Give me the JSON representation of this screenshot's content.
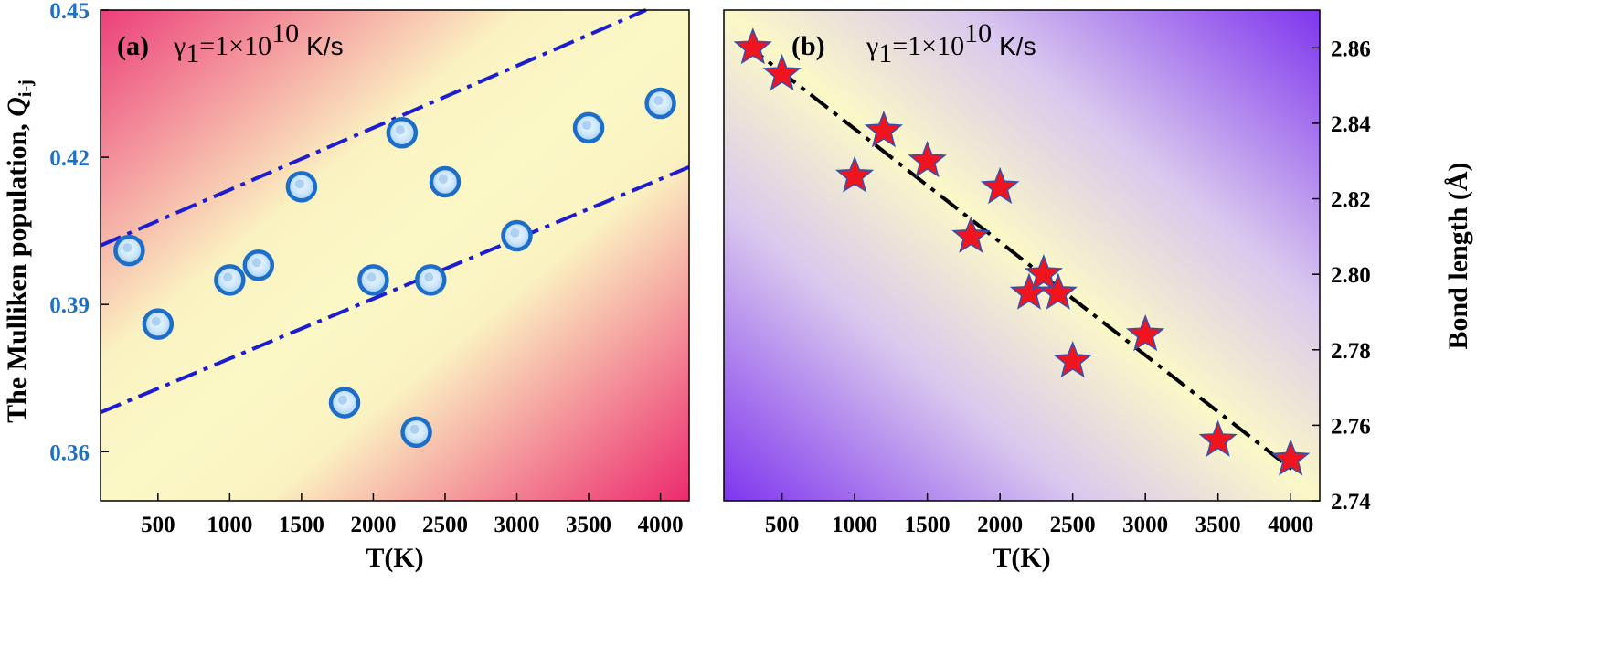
{
  "chart_data": [
    {
      "type": "scatter",
      "panel_label": "(a)",
      "annotation": {
        "symbol": "γ",
        "sub": "1",
        "main": "=1×10",
        "sup": "10",
        "unit": "K/s"
      },
      "xlabel": "T(K)",
      "ylabel": {
        "main": "The Mulliken population, ",
        "italic": "Q",
        "sub": "i-j"
      },
      "xlim": [
        100,
        4200
      ],
      "ylim": [
        0.35,
        0.45
      ],
      "xticks": [
        500,
        1000,
        1500,
        2000,
        2500,
        3000,
        3500,
        4000
      ],
      "yticks": [
        0.36,
        0.39,
        0.42,
        0.45
      ],
      "ytick_labels": [
        "0.36",
        "0.39",
        "0.42",
        "0.45"
      ],
      "ytick_color": "#1f6fc5",
      "background": "pink-to-yellow gradient",
      "points": [
        {
          "x": 300,
          "y": 0.401
        },
        {
          "x": 500,
          "y": 0.386
        },
        {
          "x": 1000,
          "y": 0.395
        },
        {
          "x": 1200,
          "y": 0.398
        },
        {
          "x": 1500,
          "y": 0.414
        },
        {
          "x": 1800,
          "y": 0.37
        },
        {
          "x": 2000,
          "y": 0.395
        },
        {
          "x": 2200,
          "y": 0.425
        },
        {
          "x": 2300,
          "y": 0.364
        },
        {
          "x": 2400,
          "y": 0.395
        },
        {
          "x": 2500,
          "y": 0.415
        },
        {
          "x": 3000,
          "y": 0.404
        },
        {
          "x": 3500,
          "y": 0.426
        },
        {
          "x": 4000,
          "y": 0.431
        }
      ],
      "lines": [
        {
          "x": [
            100,
            3900
          ],
          "y": [
            0.402,
            0.45
          ],
          "style": "dash-dot",
          "color": "#1c1cd0"
        },
        {
          "x": [
            100,
            4200
          ],
          "y": [
            0.368,
            0.418
          ],
          "style": "dash-dot",
          "color": "#1c1cd0"
        }
      ],
      "marker": "circle",
      "marker_color": "#1c6ec8"
    },
    {
      "type": "scatter",
      "panel_label": "(b)",
      "annotation": {
        "symbol": "γ",
        "sub": "1",
        "main": "=1×10",
        "sup": "10",
        "unit": "K/s"
      },
      "xlabel": "T(K)",
      "ylabel": "Bond length (Å)",
      "xlim": [
        100,
        4200
      ],
      "ylim": [
        2.74,
        2.87
      ],
      "xticks": [
        500,
        1000,
        1500,
        2000,
        2500,
        3000,
        3500,
        4000
      ],
      "yticks": [
        2.74,
        2.76,
        2.78,
        2.8,
        2.82,
        2.84,
        2.86
      ],
      "ytick_labels": [
        "2.74",
        "2.76",
        "2.78",
        "2.80",
        "2.82",
        "2.84",
        "2.86"
      ],
      "background": "yellow-to-purple gradient",
      "points": [
        {
          "x": 300,
          "y": 2.86
        },
        {
          "x": 500,
          "y": 2.853
        },
        {
          "x": 1000,
          "y": 2.826
        },
        {
          "x": 1200,
          "y": 2.838
        },
        {
          "x": 1500,
          "y": 2.83
        },
        {
          "x": 1800,
          "y": 2.81
        },
        {
          "x": 2000,
          "y": 2.823
        },
        {
          "x": 2200,
          "y": 2.795
        },
        {
          "x": 2300,
          "y": 2.8
        },
        {
          "x": 2400,
          "y": 2.795
        },
        {
          "x": 2500,
          "y": 2.777
        },
        {
          "x": 3000,
          "y": 2.784
        },
        {
          "x": 3500,
          "y": 2.756
        },
        {
          "x": 4000,
          "y": 2.751
        }
      ],
      "lines": [
        {
          "x": [
            250,
            4020
          ],
          "y": [
            2.861,
            2.748
          ],
          "style": "dash-dot",
          "color": "#000000"
        }
      ],
      "marker": "star",
      "marker_color": "#f0141e"
    }
  ]
}
